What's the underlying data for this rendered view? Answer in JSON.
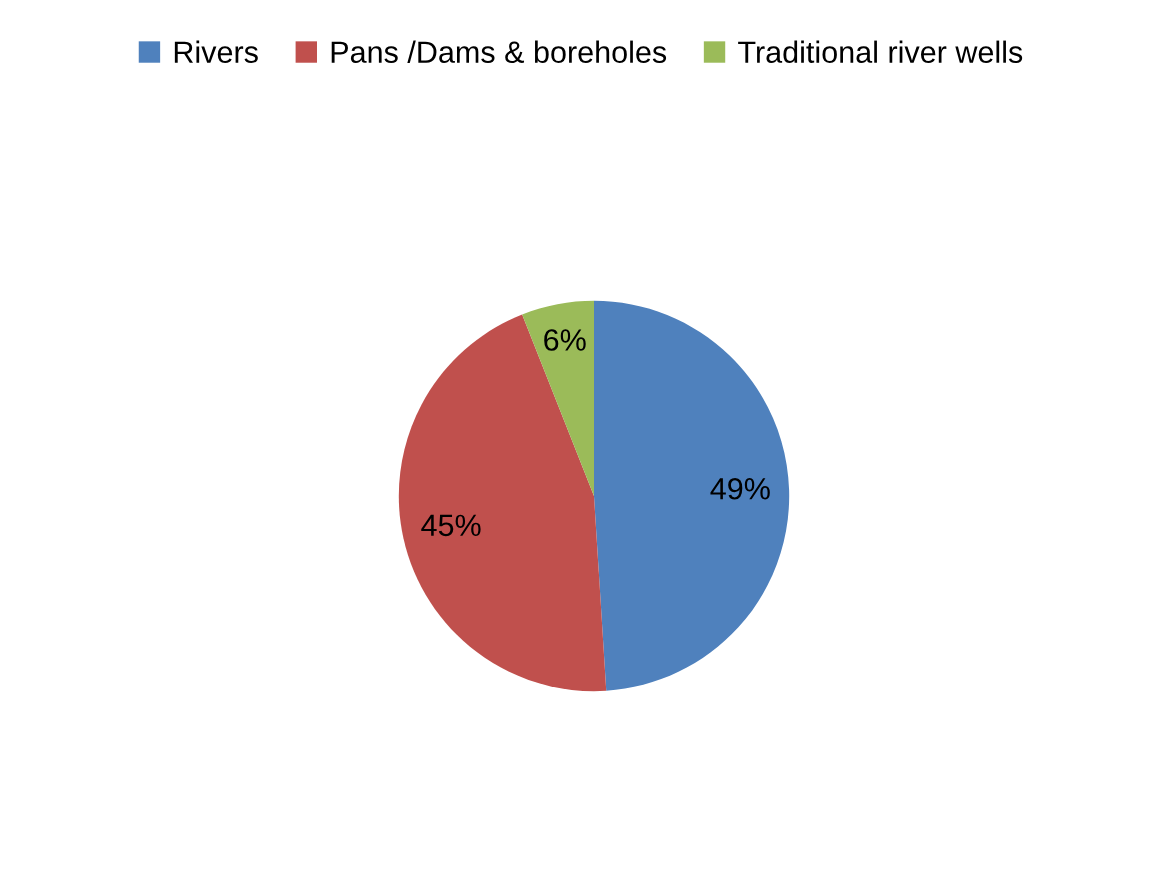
{
  "chart_data": {
    "type": "pie",
    "categories": [
      "Rivers",
      "Pans /Dams & boreholes",
      "Traditional river wells"
    ],
    "values": [
      49,
      45,
      6
    ],
    "colors": [
      "#4f81bd",
      "#c0504d",
      "#9bbb59"
    ],
    "value_labels": [
      "49%",
      "45%",
      "6%"
    ],
    "legend": "top"
  }
}
